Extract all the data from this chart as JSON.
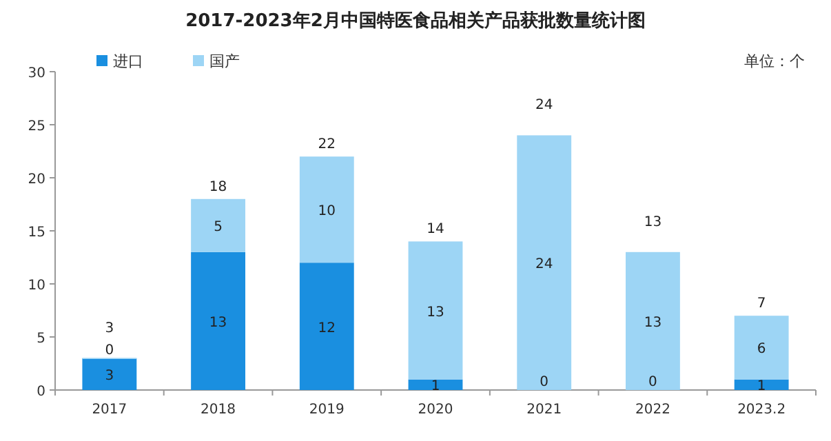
{
  "chart_data": {
    "type": "bar",
    "title": "2017-2023年2月中国特医食品相关产品获批数量统计图",
    "annotations": [
      "单位：个"
    ],
    "categories": [
      "2017",
      "2018",
      "2019",
      "2020",
      "2021",
      "2022",
      "2023.2"
    ],
    "series": [
      {
        "name": "进口",
        "color": "#1a8fe0",
        "values": [
          3,
          13,
          12,
          1,
          0,
          0,
          1
        ]
      },
      {
        "name": "国产",
        "color": "#9dd5f5",
        "values": [
          0,
          5,
          10,
          13,
          24,
          13,
          6
        ]
      }
    ],
    "stacked": true,
    "data_labels": true,
    "totals": [
      "3",
      "18",
      "22",
      "14",
      "24",
      "13",
      "7"
    ],
    "ylim": [
      0,
      30
    ],
    "yticks": [
      0,
      5,
      10,
      15,
      20,
      25,
      30
    ],
    "legend": "top left"
  }
}
